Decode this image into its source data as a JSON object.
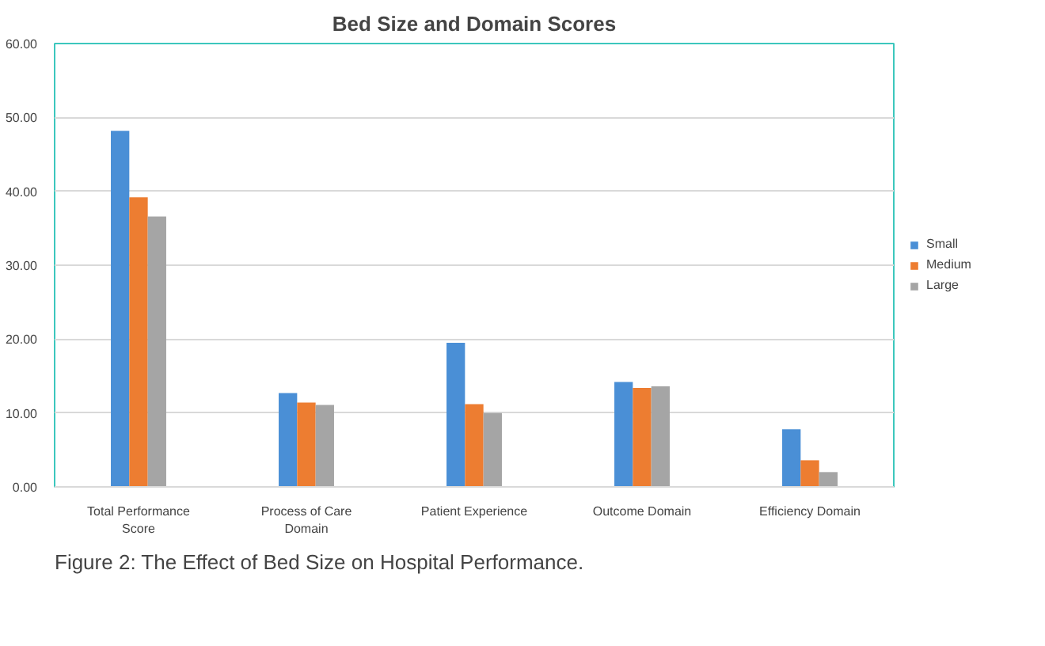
{
  "chart_data": {
    "type": "bar",
    "title": "Bed Size and Domain Scores",
    "categories": [
      "Total Performance\nScore",
      "Process of Care\nDomain",
      "Patient Experience",
      "Outcome Domain",
      "Efficiency Domain"
    ],
    "series": [
      {
        "name": "Small",
        "color": "#4a8fd6",
        "values": [
          48.2,
          12.7,
          19.5,
          14.2,
          7.8
        ]
      },
      {
        "name": "Medium",
        "color": "#ed7d31",
        "values": [
          39.2,
          11.4,
          11.2,
          13.4,
          3.6
        ]
      },
      {
        "name": "Large",
        "color": "#a5a5a5",
        "values": [
          36.6,
          11.1,
          10.0,
          13.6,
          2.0
        ]
      }
    ],
    "ylim": [
      0,
      60
    ],
    "yticks": [
      {
        "value": 0,
        "label": "0.00"
      },
      {
        "value": 10,
        "label": "10.00"
      },
      {
        "value": 20,
        "label": "20.00"
      },
      {
        "value": 30,
        "label": "30.00"
      },
      {
        "value": 40,
        "label": "40.00"
      },
      {
        "value": 50,
        "label": "50.00"
      },
      {
        "value": 60,
        "label": "60.00"
      }
    ],
    "grid": "y",
    "legend": "right",
    "annotations": [
      "Figure 2: The Effect of Bed Size on Hospital Performance."
    ]
  }
}
